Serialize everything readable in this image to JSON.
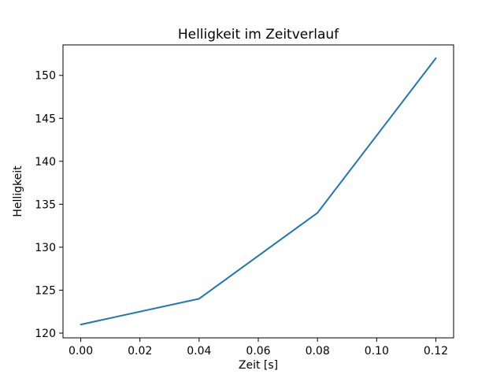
{
  "figure": {
    "background": "#ffffff"
  },
  "chart_data": {
    "type": "line",
    "title": "Helligkeit im Zeitverlauf",
    "xlabel": "Zeit [s]",
    "ylabel": "Helligkeit",
    "x": [
      0.0,
      0.04,
      0.08,
      0.12
    ],
    "y": [
      121,
      124,
      134,
      152
    ],
    "xticks": {
      "values": [
        0.0,
        0.02,
        0.04,
        0.06,
        0.08,
        0.1,
        0.12
      ],
      "labels": [
        "0.00",
        "0.02",
        "0.04",
        "0.06",
        "0.08",
        "0.10",
        "0.12"
      ]
    },
    "yticks": {
      "values": [
        120,
        125,
        130,
        135,
        140,
        145,
        150
      ],
      "labels": [
        "120",
        "125",
        "130",
        "135",
        "140",
        "145",
        "150"
      ]
    },
    "xlim": [
      -0.006,
      0.126
    ],
    "ylim": [
      119.45,
      153.55
    ],
    "line_color": "#1f77b4",
    "axis_color": "#000000",
    "grid": false,
    "legend": null
  }
}
